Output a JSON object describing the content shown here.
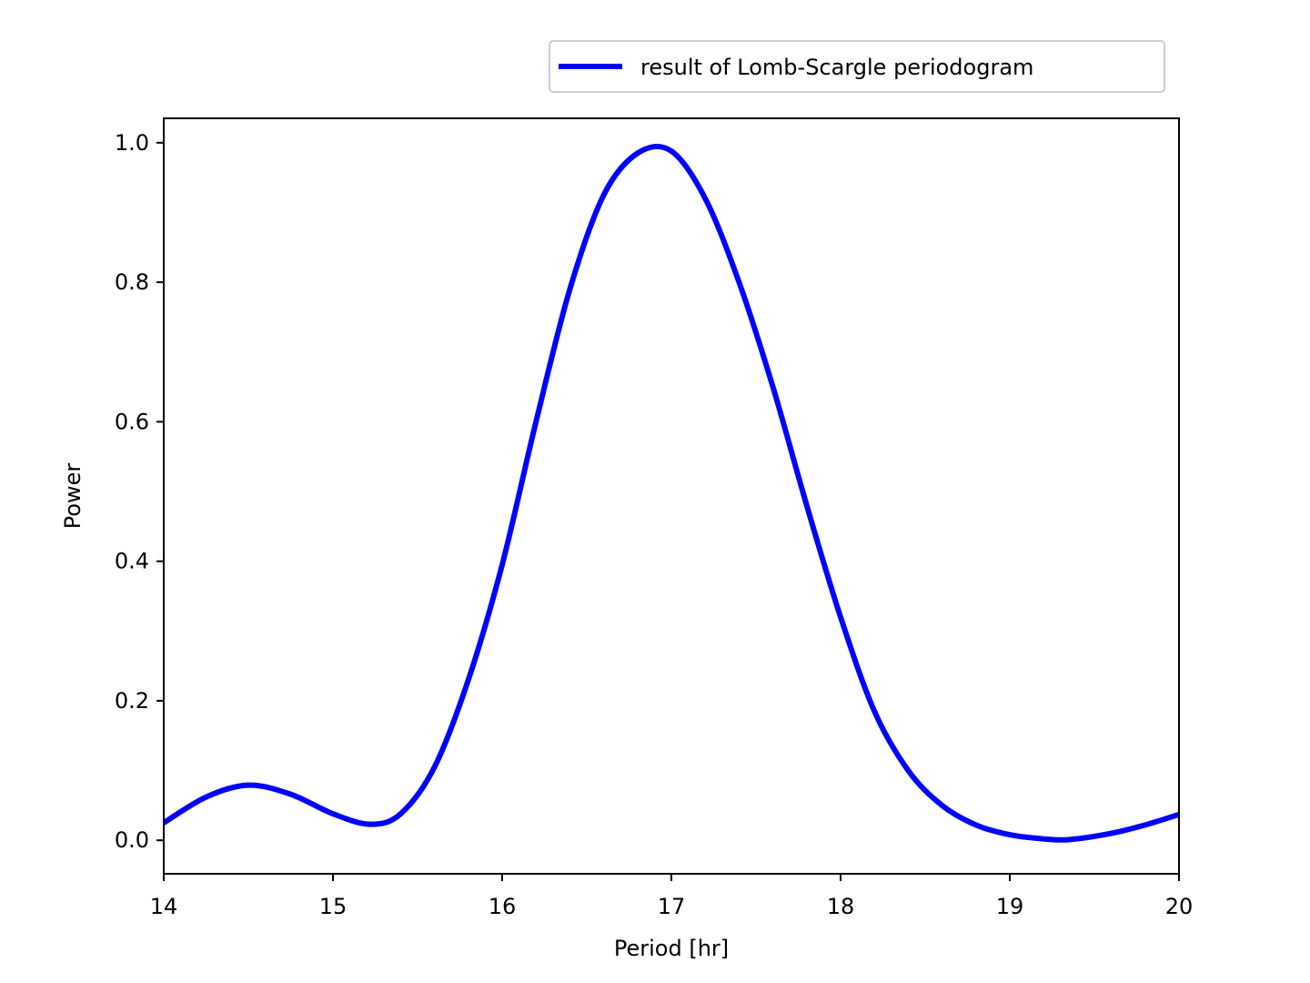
{
  "chart_data": {
    "type": "line",
    "title": "",
    "xlabel": "Period [hr]",
    "ylabel": "Power",
    "xlim": [
      14,
      20
    ],
    "ylim": [
      -0.048,
      1.035
    ],
    "xticks": [
      "14",
      "15",
      "16",
      "17",
      "18",
      "19",
      "20"
    ],
    "yticks": [
      "0.0",
      "0.2",
      "0.4",
      "0.6",
      "0.8",
      "1.0"
    ],
    "grid": false,
    "legend_position": "top-right, above plot",
    "series": [
      {
        "name": "result of Lomb-Scargle periodogram",
        "color": "#0000ff",
        "x": [
          14.0,
          14.25,
          14.5,
          14.75,
          15.0,
          15.22,
          15.4,
          15.6,
          15.8,
          16.0,
          16.2,
          16.4,
          16.6,
          16.8,
          17.0,
          17.2,
          17.4,
          17.6,
          17.8,
          18.0,
          18.2,
          18.4,
          18.6,
          18.8,
          19.0,
          19.2,
          19.35,
          19.6,
          19.8,
          20.0
        ],
        "y": [
          0.025,
          0.062,
          0.079,
          0.066,
          0.038,
          0.023,
          0.038,
          0.105,
          0.23,
          0.395,
          0.6,
          0.79,
          0.925,
          0.985,
          0.988,
          0.92,
          0.8,
          0.65,
          0.48,
          0.32,
          0.185,
          0.1,
          0.05,
          0.022,
          0.008,
          0.002,
          0.001,
          0.01,
          0.022,
          0.037
        ]
      }
    ]
  }
}
